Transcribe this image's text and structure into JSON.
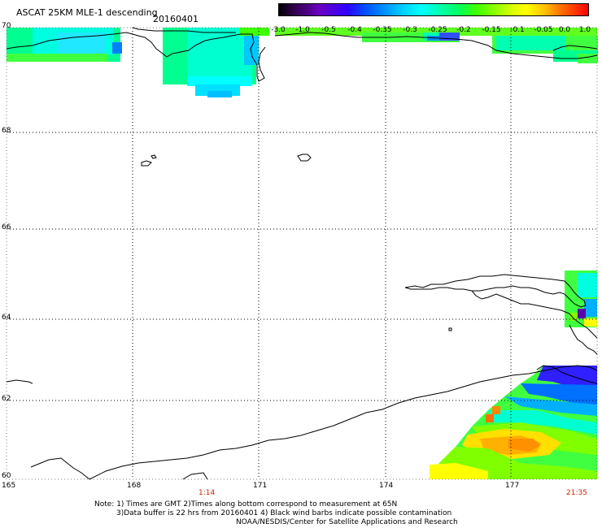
{
  "header": {
    "title": "ASCAT 25KM MLE-1 descending",
    "date": "20160401"
  },
  "colorbar": {
    "labels": [
      "-3.0",
      "-1.0",
      "-0.5",
      "-0.4",
      "-0.35",
      "-0.3",
      "-0.25",
      "-0.2",
      "-0.15",
      "-0.1",
      "-0.05",
      "0.0",
      "1.0"
    ],
    "colors": [
      "#000000",
      "#3a0060",
      "#5a00a8",
      "#3000ff",
      "#0060ff",
      "#00b0ff",
      "#00ffff",
      "#00ffb0",
      "#00ff40",
      "#80ff00",
      "#ffff00",
      "#ff9000",
      "#ff2000"
    ]
  },
  "axes": {
    "lat_labels": [
      "70",
      "68",
      "66",
      "64",
      "62",
      "60"
    ],
    "lon_labels": [
      "165",
      "168",
      "171",
      "174",
      "177"
    ],
    "time_labels": [
      "1:14",
      "21:35"
    ]
  },
  "notes": {
    "line1": "Note: 1) Times are GMT 2)Times along bottom correspond to measurement at 65N",
    "line2": "3)Data buffer is 22 hrs from 20160401 4) Black wind barbs indicate possible contamination",
    "line3": "NOAA/NESDIS/Center for Satellite Applications and Research"
  }
}
